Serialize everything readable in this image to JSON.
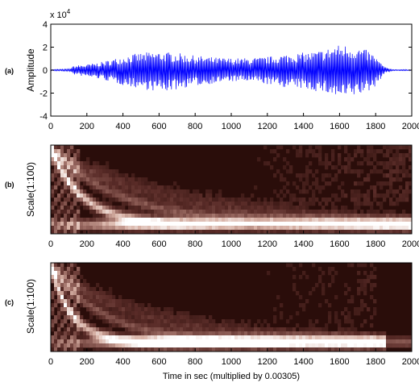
{
  "chart_data": [
    {
      "panel_label": "(a)",
      "type": "line",
      "ylabel": "Amplitude",
      "exponent_label": "x 10",
      "exponent_power": "4",
      "xlim": [
        0,
        2000
      ],
      "ylim": [
        -4,
        4
      ],
      "x_ticks": [
        "0",
        "200",
        "400",
        "600",
        "800",
        "1000",
        "1200",
        "1400",
        "1600",
        "1800",
        "2000"
      ],
      "y_ticks": [
        "4",
        "2",
        "0",
        "-2",
        "-4"
      ],
      "color": "#0000ff",
      "envelope": {
        "x": [
          0,
          100,
          130,
          200,
          280,
          350,
          420,
          500,
          560,
          620,
          700,
          780,
          850,
          920,
          1000,
          1080,
          1150,
          1220,
          1300,
          1380,
          1450,
          1520,
          1580,
          1640,
          1700,
          1760,
          1800,
          1830,
          1860,
          1900,
          2000
        ],
        "upper": [
          0.05,
          0.1,
          0.4,
          0.5,
          0.7,
          1.0,
          1.3,
          1.5,
          1.6,
          1.6,
          1.5,
          1.3,
          1.2,
          1.1,
          1.05,
          1.05,
          1.1,
          1.2,
          1.4,
          1.5,
          1.6,
          1.8,
          2.2,
          2.2,
          2.0,
          1.7,
          1.2,
          0.6,
          0.2,
          0.05,
          0.05
        ],
        "lower": [
          -0.05,
          -0.1,
          -0.4,
          -0.6,
          -0.8,
          -1.1,
          -1.4,
          -1.6,
          -1.8,
          -1.9,
          -1.7,
          -1.4,
          -1.3,
          -1.1,
          -1.0,
          -1.0,
          -1.1,
          -1.3,
          -1.5,
          -1.6,
          -1.8,
          -2.0,
          -2.4,
          -2.5,
          -2.2,
          -1.9,
          -1.4,
          -0.7,
          -0.2,
          -0.05,
          -0.05
        ]
      }
    },
    {
      "panel_label": "(b)",
      "type": "heatmap",
      "ylabel": "Scale(1:100)",
      "xlim": [
        0,
        2000
      ],
      "x_ticks": [
        "0",
        "200",
        "400",
        "600",
        "800",
        "1000",
        "1200",
        "1400",
        "1600",
        "1800",
        "2000"
      ],
      "colormap": [
        "#2a0d0a",
        "#5a2c28",
        "#9a6a62",
        "#d8b2a6",
        "#ffffff"
      ]
    },
    {
      "panel_label": "(c)",
      "type": "heatmap",
      "ylabel": "Scale(1:100)",
      "xlabel": "Time in sec (multiplied by 0.00305)",
      "xlim": [
        0,
        2000
      ],
      "x_ticks": [
        "0",
        "200",
        "400",
        "600",
        "800",
        "1000",
        "1200",
        "1400",
        "1600",
        "1800",
        "2000"
      ],
      "colormap": [
        "#2a0d0a",
        "#5a2c28",
        "#9a6a62",
        "#d8b2a6",
        "#ffffff"
      ]
    }
  ]
}
